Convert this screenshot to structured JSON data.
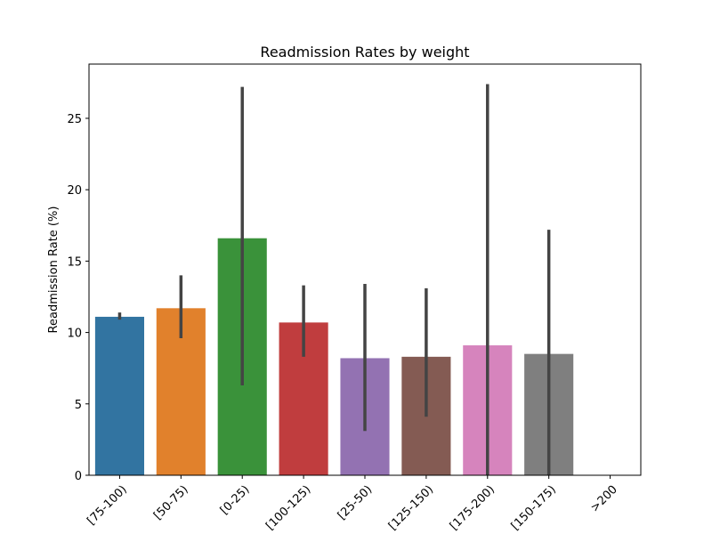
{
  "chart_data": {
    "type": "bar",
    "title": "Readmission Rates by weight",
    "xlabel": "",
    "ylabel": "Readmission Rate (%)",
    "ylim": [
      0,
      28.8
    ],
    "yticks": [
      0,
      5,
      10,
      15,
      20,
      25
    ],
    "categories": [
      "[75-100)",
      "[50-75)",
      "[0-25)",
      "[100-125)",
      "[25-50)",
      "[125-150)",
      "[175-200)",
      "[150-175)",
      ">200"
    ],
    "values": [
      11.1,
      11.7,
      16.6,
      10.7,
      8.2,
      8.3,
      9.1,
      8.5,
      0
    ],
    "error_low": [
      10.9,
      9.6,
      6.3,
      8.3,
      3.1,
      4.1,
      0,
      0,
      null
    ],
    "error_high": [
      11.4,
      14.0,
      27.2,
      13.3,
      13.4,
      13.1,
      27.4,
      17.2,
      null
    ],
    "colors": [
      "#3274a1",
      "#e1812c",
      "#3a923a",
      "#c03d3e",
      "#9372b2",
      "#845b53",
      "#d684bd",
      "#7f7f7f",
      "#a9aa35"
    ],
    "grid": false,
    "legend": "none"
  }
}
